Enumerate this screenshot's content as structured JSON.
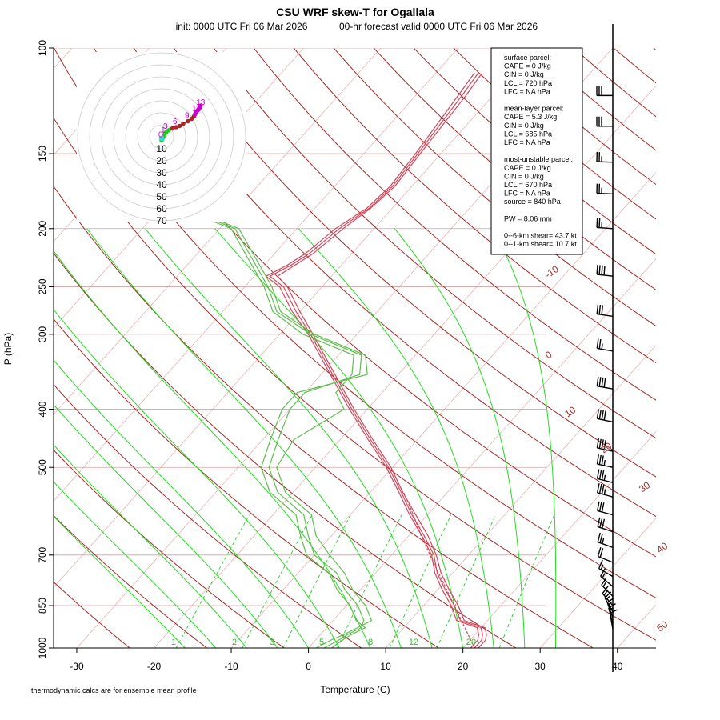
{
  "title": "CSU WRF skew-T for Ogallala",
  "subtitle_init": "init: 0000 UTC Fri 06 Mar 2026",
  "subtitle_valid": "00-hr forecast valid 0000 UTC Fri 06 Mar 2026",
  "footnote": "thermodynamic calcs are for ensemble mean profile",
  "colors": {
    "temperature": "#d4465a",
    "dewpoint": "#5fbf4f",
    "isotherm": "#e8b4b4",
    "dry_adiabat": "#a52a2a",
    "moist_adiabat": "#22dd22",
    "mixing_ratio": "#22cc22",
    "isobar": "#d8a0a0",
    "hodograph_ring": "#cccccc",
    "hodograph_low": "#22cc22",
    "hodograph_mid": "#a52a2a",
    "hodograph_high": "#cc00cc",
    "hodograph_label": "#ff6600"
  },
  "info_panel": {
    "lines": [
      "surface parcel:",
      "CAPE = 0 J/kg",
      "CIN = 0 J/kg",
      "LCL = 720 hPa",
      "LFC = NA hPa",
      "",
      "mean-layer parcel:",
      "CAPE = 5.3 J/kg",
      "CIN = 0 J/kg",
      "LCL = 685 hPa",
      "LFC = NA hPa",
      "",
      "most-unstable parcel:",
      "CAPE = 0 J/kg",
      "CIN = 0 J/kg",
      "LCL = 670 hPa",
      "LFC = NA hPa",
      "source = 840 hPa",
      "",
      "PW =  8.06 mm",
      "",
      "0--6-km shear= 43.7 kt",
      "0--1-km shear= 10.7 kt"
    ]
  },
  "chart_data": {
    "type": "line",
    "xlabel": "Temperature (C)",
    "ylabel": "P (hPa)",
    "xlim": [
      -33,
      45
    ],
    "ylim": [
      1000,
      100
    ],
    "y_scale": "log",
    "x_ticks": [
      -30,
      -20,
      -10,
      0,
      10,
      20,
      30,
      40
    ],
    "y_ticks": [
      100,
      150,
      200,
      250,
      300,
      400,
      500,
      700,
      850,
      1000
    ],
    "isotherm_labels": [
      -10,
      0,
      10,
      20,
      30,
      40,
      50
    ],
    "mixing_ratio_labels": [
      "1",
      "2",
      "3",
      "5",
      "8",
      "12",
      "20"
    ],
    "series": [
      {
        "kind": "temperature",
        "members": [
          [
            [
              1000,
              21.5
            ],
            [
              970,
              21.5
            ],
            [
              950,
              21.0
            ],
            [
              925,
              20.0
            ],
            [
              900,
              16.5
            ],
            [
              850,
              14.0
            ],
            [
              800,
              11.0
            ],
            [
              750,
              8.0
            ],
            [
              700,
              5.5
            ],
            [
              650,
              2.0
            ],
            [
              600,
              -2.0
            ],
            [
              550,
              -6.0
            ],
            [
              500,
              -10.5
            ],
            [
              450,
              -16.0
            ],
            [
              400,
              -22.0
            ],
            [
              350,
              -28.5
            ],
            [
              300,
              -36.0
            ],
            [
              275,
              -40.5
            ],
            [
              250,
              -45.0
            ],
            [
              240,
              -48.0
            ],
            [
              230,
              -46.5
            ],
            [
              220,
              -45.5
            ],
            [
              200,
              -44.5
            ],
            [
              185,
              -43.0
            ],
            [
              170,
              -42.5
            ],
            [
              150,
              -43.0
            ],
            [
              120,
              -44.0
            ],
            [
              110,
              -44.5
            ]
          ],
          [
            [
              1000,
              22.0
            ],
            [
              970,
              22.0
            ],
            [
              950,
              21.5
            ],
            [
              925,
              20.5
            ],
            [
              900,
              17.0
            ],
            [
              850,
              14.5
            ],
            [
              800,
              11.5
            ],
            [
              750,
              8.5
            ],
            [
              700,
              5.8
            ],
            [
              650,
              2.5
            ],
            [
              600,
              -1.5
            ],
            [
              550,
              -5.8
            ],
            [
              500,
              -10.2
            ],
            [
              450,
              -15.7
            ],
            [
              400,
              -21.7
            ],
            [
              350,
              -28.2
            ],
            [
              300,
              -35.7
            ],
            [
              275,
              -40.0
            ],
            [
              250,
              -44.5
            ],
            [
              240,
              -47.0
            ],
            [
              230,
              -46.0
            ],
            [
              220,
              -45.0
            ],
            [
              200,
              -44.0
            ],
            [
              185,
              -42.8
            ],
            [
              170,
              -42.2
            ],
            [
              150,
              -42.7
            ],
            [
              120,
              -43.5
            ],
            [
              110,
              -44.0
            ]
          ],
          [
            [
              1000,
              21.0
            ],
            [
              970,
              21.0
            ],
            [
              950,
              20.5
            ],
            [
              925,
              19.5
            ],
            [
              900,
              16.0
            ],
            [
              850,
              13.6
            ],
            [
              800,
              10.6
            ],
            [
              750,
              7.7
            ],
            [
              700,
              5.2
            ],
            [
              650,
              1.7
            ],
            [
              600,
              -2.3
            ],
            [
              550,
              -6.3
            ],
            [
              500,
              -10.8
            ],
            [
              450,
              -16.3
            ],
            [
              400,
              -22.3
            ],
            [
              350,
              -28.8
            ],
            [
              300,
              -36.3
            ],
            [
              275,
              -41.0
            ],
            [
              250,
              -45.5
            ],
            [
              240,
              -48.5
            ],
            [
              230,
              -47.0
            ],
            [
              220,
              -46.0
            ],
            [
              200,
              -45.0
            ],
            [
              185,
              -43.3
            ],
            [
              170,
              -42.8
            ],
            [
              150,
              -43.3
            ],
            [
              120,
              -44.5
            ],
            [
              110,
              -45.0
            ]
          ]
        ]
      },
      {
        "kind": "dewpoint",
        "members": [
          [
            [
              1000,
              2.0
            ],
            [
              970,
              3.0
            ],
            [
              950,
              3.5
            ],
            [
              925,
              4.5
            ],
            [
              900,
              4.0
            ],
            [
              850,
              1.5
            ],
            [
              800,
              -2.0
            ],
            [
              750,
              -5.0
            ],
            [
              700,
              -10.0
            ],
            [
              650,
              -13.0
            ],
            [
              600,
              -16.0
            ],
            [
              550,
              -22.0
            ],
            [
              500,
              -26.0
            ],
            [
              450,
              -28.0
            ],
            [
              400,
              -30.0
            ],
            [
              375,
              -30.0
            ],
            [
              350,
              -25.0
            ],
            [
              325,
              -27.0
            ],
            [
              300,
              -36.0
            ],
            [
              275,
              -43.0
            ],
            [
              250,
              -47.0
            ],
            [
              200,
              -58.0
            ],
            [
              180,
              -70.0
            ]
          ],
          [
            [
              1000,
              1.0
            ],
            [
              970,
              2.0
            ],
            [
              950,
              3.0
            ],
            [
              925,
              4.0
            ],
            [
              900,
              5.0
            ],
            [
              850,
              2.5
            ],
            [
              800,
              -1.0
            ],
            [
              750,
              -4.0
            ],
            [
              700,
              -8.0
            ],
            [
              650,
              -12.0
            ],
            [
              600,
              -15.0
            ],
            [
              550,
              -21.0
            ],
            [
              500,
              -25.0
            ],
            [
              450,
              -26.0
            ],
            [
              400,
              -23.0
            ],
            [
              375,
              -26.0
            ],
            [
              350,
              -26.0
            ],
            [
              325,
              -28.0
            ],
            [
              300,
              -37.0
            ],
            [
              275,
              -43.5
            ],
            [
              250,
              -47.5
            ],
            [
              200,
              -58.5
            ],
            [
              180,
              -70.5
            ]
          ],
          [
            [
              1000,
              3.0
            ],
            [
              970,
              3.5
            ],
            [
              950,
              4.0
            ],
            [
              925,
              5.0
            ],
            [
              900,
              3.0
            ],
            [
              850,
              0.5
            ],
            [
              800,
              -3.0
            ],
            [
              750,
              -6.0
            ],
            [
              700,
              -11.0
            ],
            [
              650,
              -14.0
            ],
            [
              600,
              -17.0
            ],
            [
              550,
              -23.0
            ],
            [
              500,
              -27.0
            ],
            [
              450,
              -29.0
            ],
            [
              400,
              -31.0
            ],
            [
              375,
              -31.0
            ],
            [
              350,
              -24.0
            ],
            [
              325,
              -26.5
            ],
            [
              300,
              -35.5
            ],
            [
              275,
              -42.5
            ],
            [
              250,
              -46.5
            ],
            [
              200,
              -57.5
            ],
            [
              180,
              -69.5
            ]
          ]
        ]
      },
      {
        "kind": "parcel",
        "members": [
          [
            [
              1000,
              21.5
            ],
            [
              850,
              14.0
            ],
            [
              720,
              6.3
            ],
            [
              650,
              1.6
            ],
            [
              600,
              -1.8
            ],
            [
              550,
              -5.7
            ]
          ]
        ]
      }
    ],
    "wind_barbs": [
      {
        "p": 120,
        "speed_kt": 30,
        "dir_deg": 270
      },
      {
        "p": 135,
        "speed_kt": 30,
        "dir_deg": 270
      },
      {
        "p": 155,
        "speed_kt": 25,
        "dir_deg": 272
      },
      {
        "p": 175,
        "speed_kt": 25,
        "dir_deg": 272
      },
      {
        "p": 200,
        "speed_kt": 25,
        "dir_deg": 274
      },
      {
        "p": 240,
        "speed_kt": 40,
        "dir_deg": 276
      },
      {
        "p": 280,
        "speed_kt": 30,
        "dir_deg": 278
      },
      {
        "p": 320,
        "speed_kt": 25,
        "dir_deg": 280
      },
      {
        "p": 370,
        "speed_kt": 40,
        "dir_deg": 280
      },
      {
        "p": 420,
        "speed_kt": 40,
        "dir_deg": 282
      },
      {
        "p": 470,
        "speed_kt": 40,
        "dir_deg": 282
      },
      {
        "p": 500,
        "speed_kt": 35,
        "dir_deg": 282
      },
      {
        "p": 530,
        "speed_kt": 35,
        "dir_deg": 284
      },
      {
        "p": 560,
        "speed_kt": 35,
        "dir_deg": 285
      },
      {
        "p": 600,
        "speed_kt": 30,
        "dir_deg": 285
      },
      {
        "p": 640,
        "speed_kt": 30,
        "dir_deg": 288
      },
      {
        "p": 680,
        "speed_kt": 25,
        "dir_deg": 290
      },
      {
        "p": 720,
        "speed_kt": 20,
        "dir_deg": 292
      },
      {
        "p": 760,
        "speed_kt": 15,
        "dir_deg": 300
      },
      {
        "p": 790,
        "speed_kt": 15,
        "dir_deg": 310
      },
      {
        "p": 820,
        "speed_kt": 15,
        "dir_deg": 315
      },
      {
        "p": 850,
        "speed_kt": 15,
        "dir_deg": 320
      },
      {
        "p": 870,
        "speed_kt": 15,
        "dir_deg": 330
      },
      {
        "p": 890,
        "speed_kt": 15,
        "dir_deg": 340
      },
      {
        "p": 910,
        "speed_kt": 15,
        "dir_deg": 345
      },
      {
        "p": 930,
        "speed_kt": 10,
        "dir_deg": 350
      }
    ],
    "hodograph": {
      "ring_labels": [
        "10",
        "20",
        "30",
        "40",
        "50",
        "60",
        "70"
      ],
      "points_kt": [
        [
          0,
          -3
        ],
        [
          1,
          -1
        ],
        [
          1.5,
          0
        ],
        [
          2,
          1
        ],
        [
          2.5,
          2
        ],
        [
          3,
          3
        ],
        [
          4,
          4
        ],
        [
          6,
          5.5
        ],
        [
          9,
          7
        ],
        [
          12,
          8
        ],
        [
          15,
          9
        ],
        [
          18,
          11
        ],
        [
          22,
          13
        ],
        [
          25,
          15
        ],
        [
          27,
          17
        ],
        [
          28,
          19
        ],
        [
          29,
          21
        ],
        [
          30,
          22
        ],
        [
          31,
          23
        ],
        [
          31.5,
          24
        ],
        [
          32,
          25
        ],
        [
          32.5,
          26
        ]
      ],
      "point_labels": [
        "0",
        "1",
        "3",
        "6",
        "9",
        "11",
        "13"
      ]
    }
  }
}
